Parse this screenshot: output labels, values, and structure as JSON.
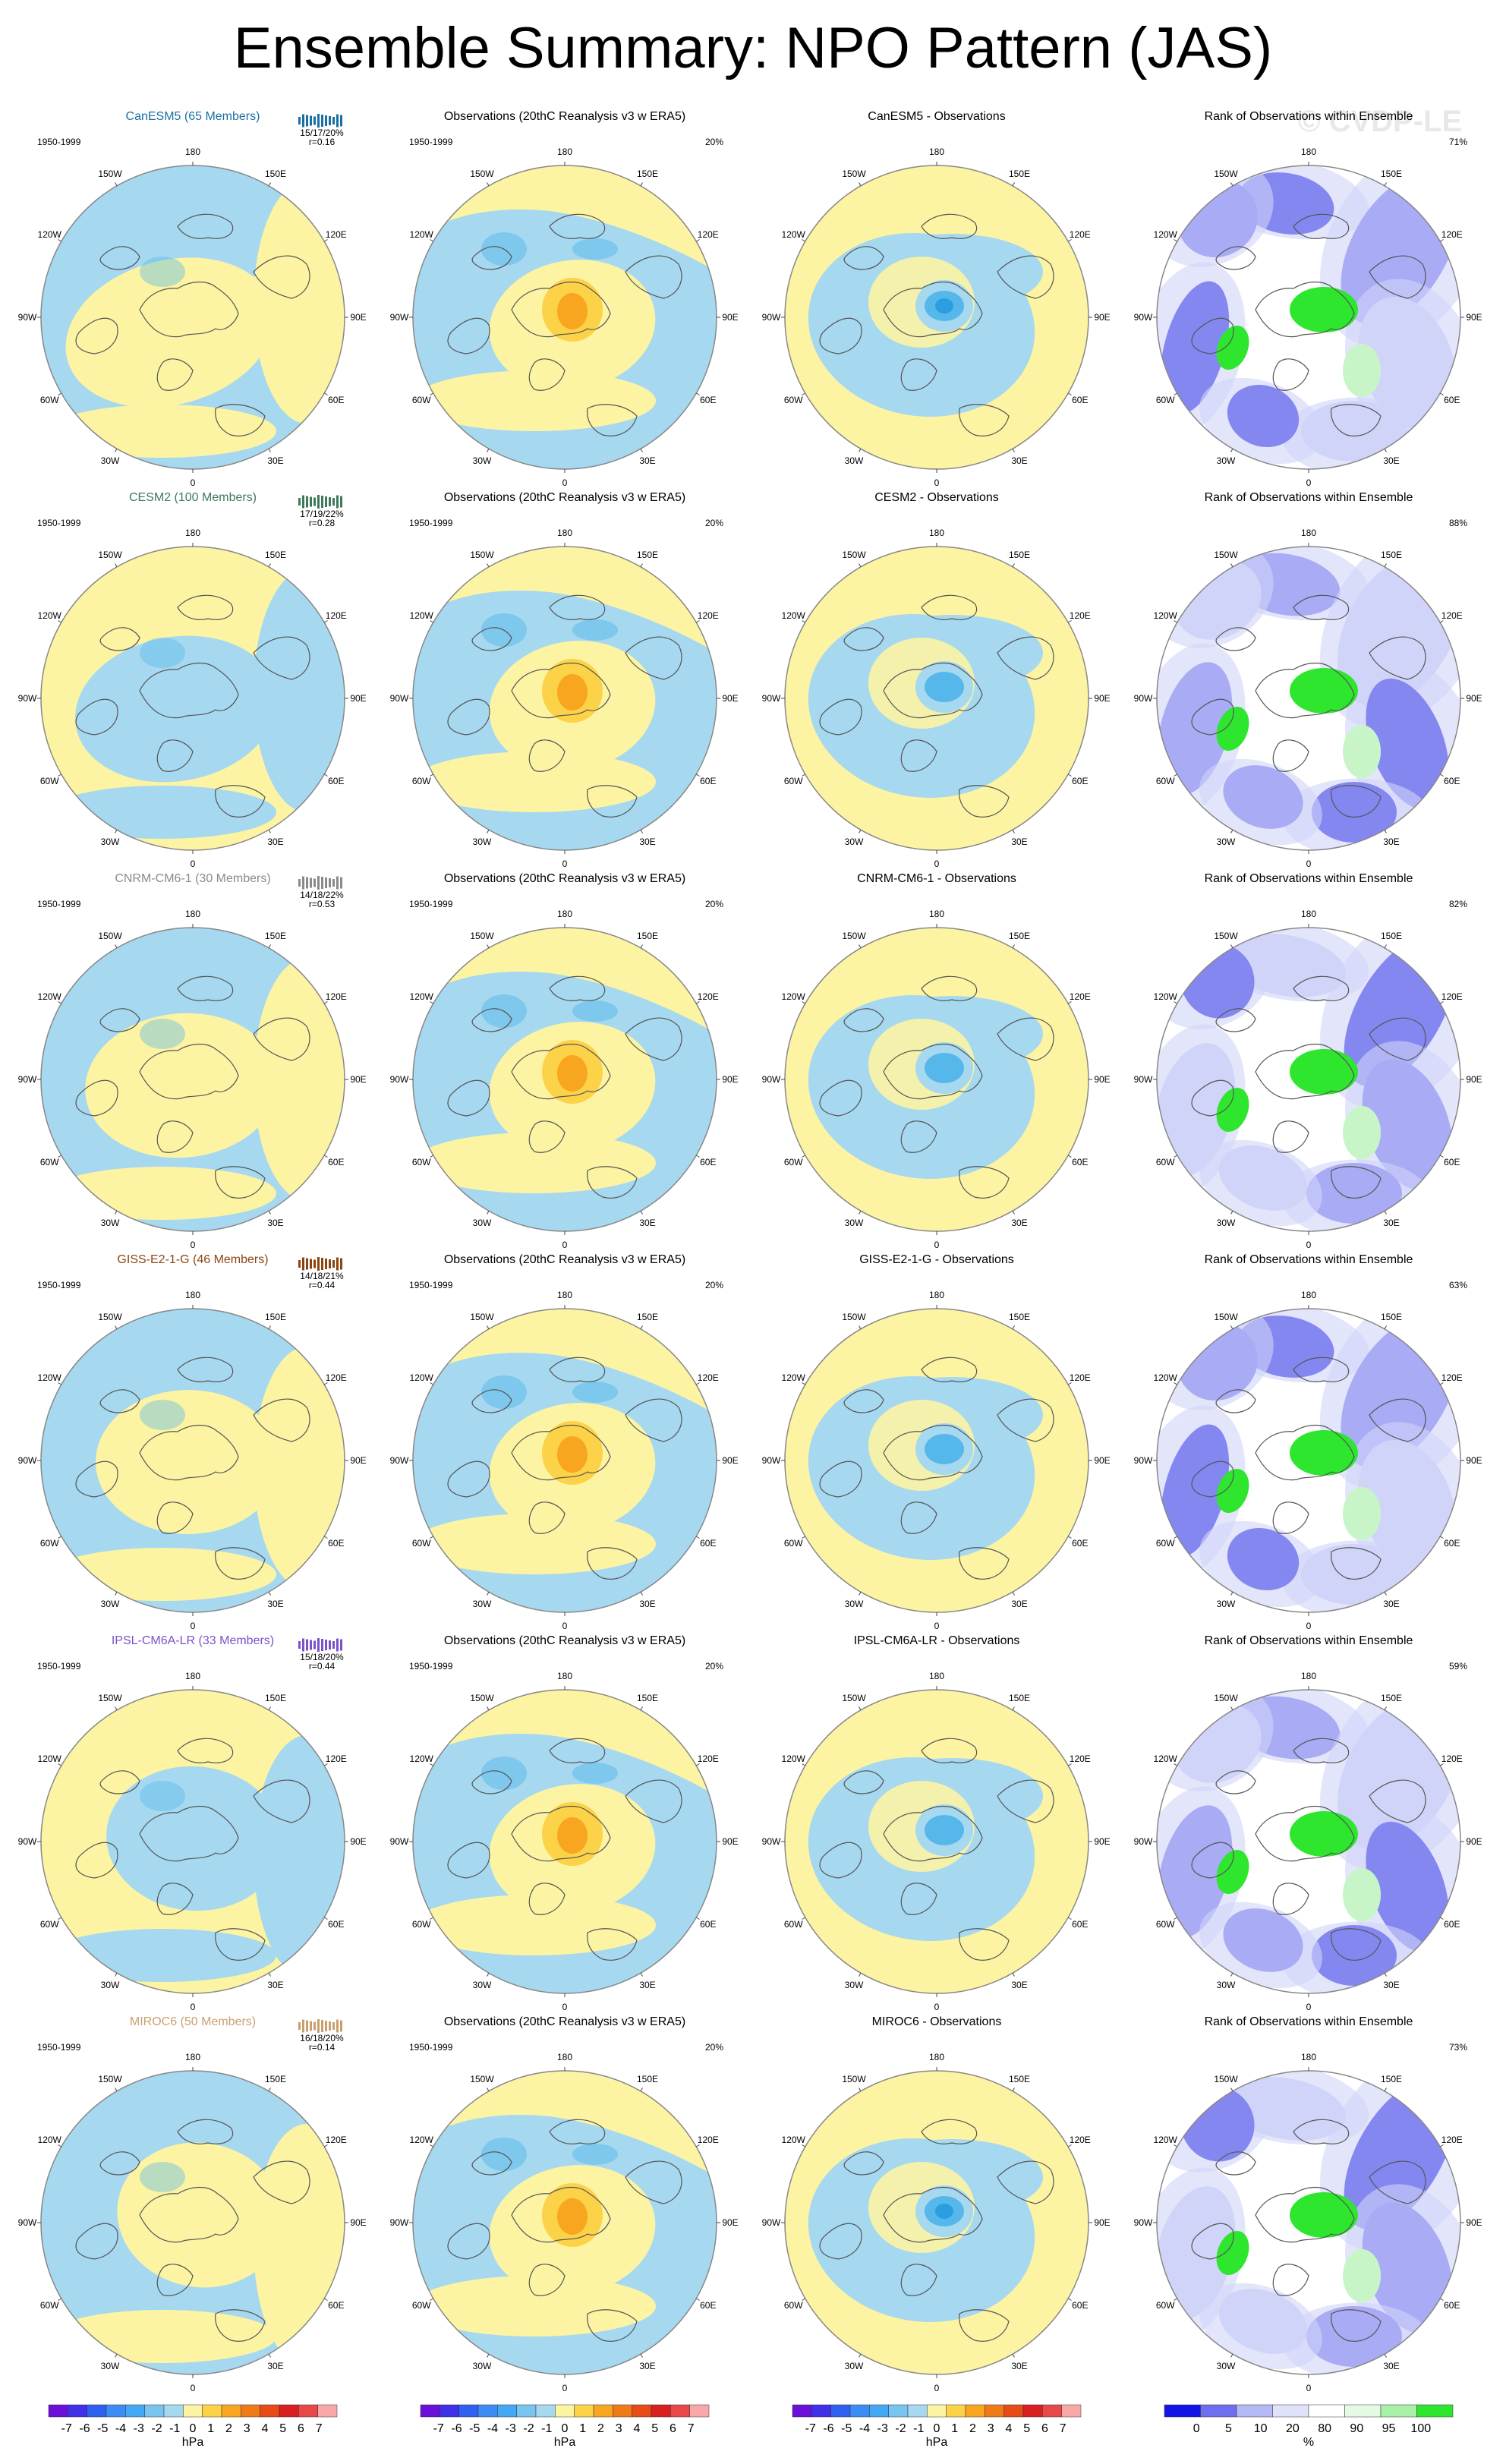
{
  "title": "Ensemble Summary: NPO Pattern (JAS)",
  "watermark": "© CVDP-LE",
  "period": "1950-1999",
  "obs_title": "Observations (20thC Reanalysis v3 w ERA5)",
  "obs_pct": "20%",
  "rank_title": "Rank of Observations within Ensemble",
  "lon_labels": [
    "180",
    "150E",
    "120E",
    "90E",
    "60E",
    "30E",
    "0",
    "30W",
    "60W",
    "90W",
    "120W",
    "150W"
  ],
  "colors": {
    "neg_light": "#a6d8f0",
    "pos_light": "#fcf4a3",
    "mid_blue": "#56b8ea",
    "deep_blue": "#2a9ee0",
    "orange1": "#fcd248",
    "orange2": "#f8a51f",
    "rank_blue_dark": "#1414e6",
    "rank_blue_mid": "#6e6ef0",
    "rank_blue_light": "#d0d4f8",
    "rank_green": "#2ee62e",
    "rank_green_light": "#c8f5c8"
  },
  "models": [
    {
      "name": "CanESM5 (65 Members)",
      "stats": "15/17/20%",
      "r": "r=0.16",
      "color": "#1a6fa3",
      "diff_title": "CanESM5 - Observations",
      "rank_pct": "71%"
    },
    {
      "name": "CESM2 (100 Members)",
      "stats": "17/19/22%",
      "r": "r=0.28",
      "color": "#3d7a5a",
      "diff_title": "CESM2 - Observations",
      "rank_pct": "88%"
    },
    {
      "name": "CNRM-CM6-1 (30 Members)",
      "stats": "14/18/22%",
      "r": "r=0.53",
      "color": "#8a8a8a",
      "diff_title": "CNRM-CM6-1 - Observations",
      "rank_pct": "82%"
    },
    {
      "name": "GISS-E2-1-G (46 Members)",
      "stats": "14/18/21%",
      "r": "r=0.44",
      "color": "#8b4513",
      "diff_title": "GISS-E2-1-G - Observations",
      "rank_pct": "63%"
    },
    {
      "name": "IPSL-CM6A-LR (33 Members)",
      "stats": "15/18/20%",
      "r": "r=0.44",
      "color": "#7b52c9",
      "diff_title": "IPSL-CM6A-LR - Observations",
      "rank_pct": "59%"
    },
    {
      "name": "MIROC6 (50 Members)",
      "stats": "16/18/20%",
      "r": "r=0.14",
      "color": "#c8a070",
      "diff_title": "MIROC6 - Observations",
      "rank_pct": "73%"
    }
  ],
  "colorbar_hpa": {
    "labels": [
      "-7",
      "-6",
      "-5",
      "-4",
      "-3",
      "-2",
      "-1",
      "0",
      "1",
      "2",
      "3",
      "4",
      "5",
      "6",
      "7"
    ],
    "colors": [
      "#6a10d8",
      "#4030e8",
      "#3060f0",
      "#3c8cf5",
      "#44a8f5",
      "#7ac4f0",
      "#a6d8f0",
      "#fcf4a3",
      "#fcd248",
      "#f8a51f",
      "#f07a18",
      "#e84a18",
      "#d82020",
      "#e84848",
      "#f8a8a8"
    ],
    "unit": "hPa"
  },
  "colorbar_rank": {
    "labels": [
      "0",
      "5",
      "10",
      "20",
      "80",
      "90",
      "95",
      "100"
    ],
    "colors": [
      "#1414e6",
      "#6e6ef0",
      "#b4b8f4",
      "#e0e2fa",
      "#ffffff",
      "#e4fae4",
      "#a8f0a8",
      "#2ee62e"
    ],
    "unit": "%"
  }
}
